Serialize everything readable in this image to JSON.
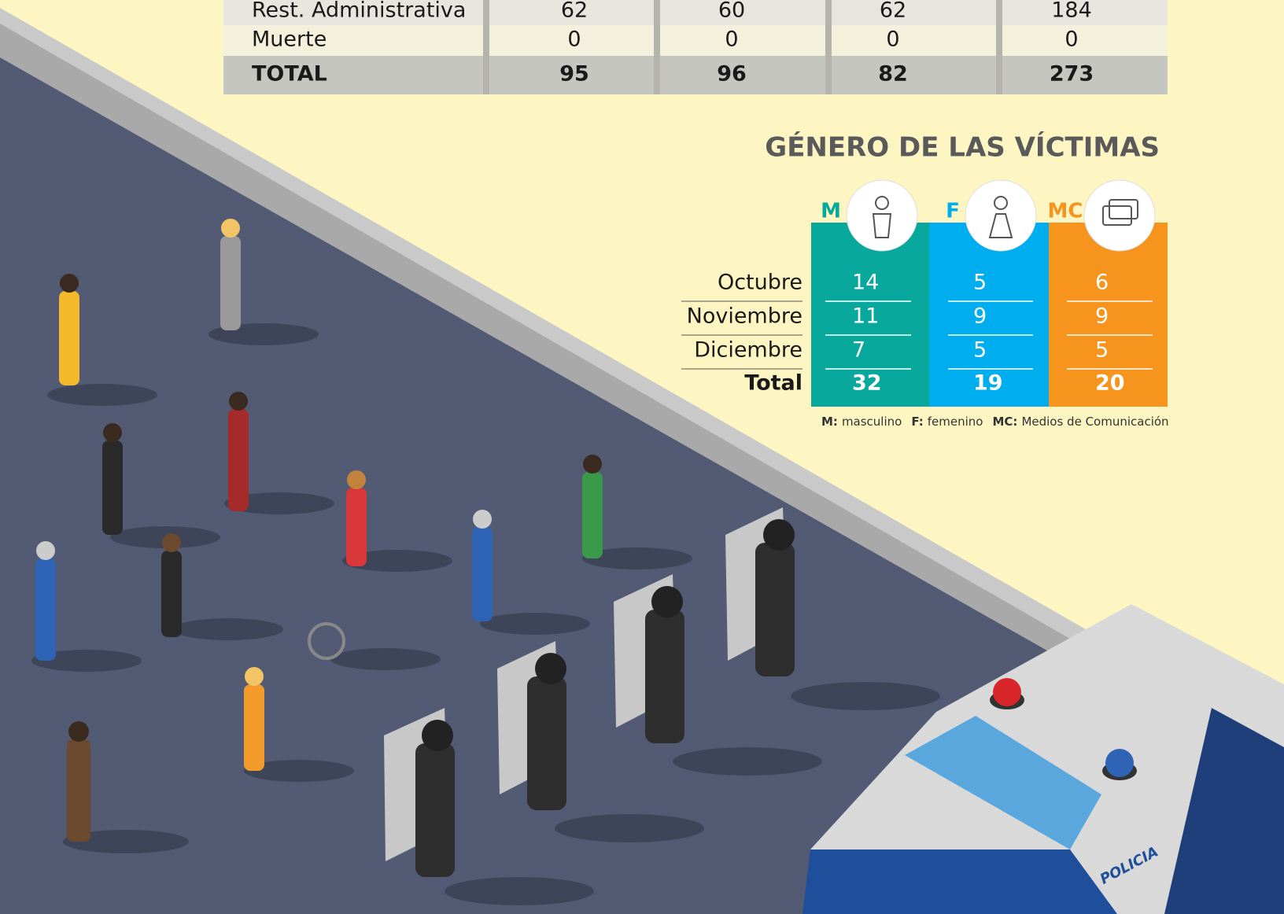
{
  "top_table": {
    "rows": [
      [
        "Rest. Administrativa",
        62,
        60,
        62,
        184
      ],
      [
        "Muerte",
        0,
        0,
        0,
        0
      ],
      [
        "TOTAL",
        95,
        96,
        82,
        273
      ]
    ]
  },
  "gender": {
    "title": "GÉNERO DE LAS VÍCTIMAS",
    "columns": [
      "M",
      "F",
      "MC"
    ],
    "rows": [
      {
        "label": "Octubre",
        "values": [
          14,
          5,
          6
        ]
      },
      {
        "label": "Noviembre",
        "values": [
          11,
          9,
          9
        ]
      },
      {
        "label": "Diciembre",
        "values": [
          7,
          5,
          5
        ]
      },
      {
        "label": "Total",
        "values": [
          32,
          19,
          20
        ]
      }
    ],
    "legend": [
      {
        "key": "M:",
        "text": "masculino"
      },
      {
        "key": "F:",
        "text": "femenino"
      },
      {
        "key": "MC:",
        "text": "Medios de Comunicación"
      }
    ]
  },
  "vehicle_label": "POLICIA"
}
